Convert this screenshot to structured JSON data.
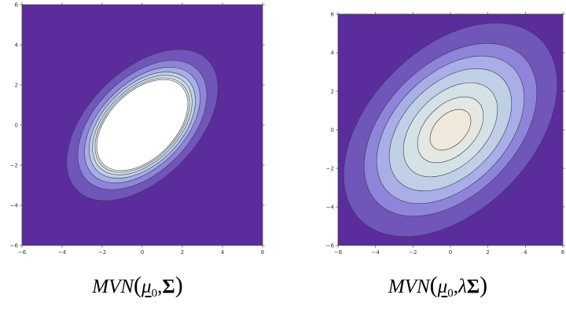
{
  "colors": {
    "background": "#5b2c9b",
    "levels": [
      "#7056b8",
      "#8e85da",
      "#a9aee6",
      "#bfd0e6",
      "#d4e2e6",
      "#e5e7e2",
      "#f1e8dc"
    ],
    "peak_fill": "#ffffff",
    "contour_line": "#3a3a55",
    "frame": "#444444"
  },
  "chart_data": [
    {
      "type": "contour",
      "title": "",
      "caption": {
        "func": "MVN",
        "mu": "μ",
        "sub": "0",
        "comma": ",",
        "lambda": "",
        "sigma": "Σ"
      },
      "xlabel": "",
      "ylabel": "",
      "xlim": [
        -6,
        6
      ],
      "ylim": [
        -6,
        6
      ],
      "xticks": [
        "−6",
        "−4",
        "−2",
        "0",
        "2",
        "4",
        "6"
      ],
      "yticks": [
        "−6",
        "−4",
        "−2",
        "0",
        "2",
        "4",
        "6"
      ],
      "grid": false,
      "center": [
        0,
        0
      ],
      "tilt_deg": 45,
      "levels": [
        {
          "semi_major": 4.6,
          "semi_minor": 2.7
        },
        {
          "semi_major": 3.9,
          "semi_minor": 2.35
        },
        {
          "semi_major": 3.5,
          "semi_minor": 2.1
        },
        {
          "semi_major": 3.2,
          "semi_minor": 1.95
        },
        {
          "semi_major": 3.0,
          "semi_minor": 1.82
        },
        {
          "semi_major": 2.85,
          "semi_minor": 1.73
        },
        {
          "semi_major": 2.75,
          "semi_minor": 1.66
        }
      ],
      "peak_white": true
    },
    {
      "type": "contour",
      "title": "",
      "caption": {
        "func": "MVN",
        "mu": "μ",
        "sub": "0",
        "comma": ",",
        "lambda": "λ",
        "sigma": "Σ"
      },
      "xlabel": "",
      "ylabel": "",
      "xlim": [
        -6,
        6
      ],
      "ylim": [
        -6,
        6
      ],
      "xticks": [
        "−6",
        "−4",
        "−2",
        "0",
        "2",
        "4",
        "6"
      ],
      "yticks": [
        "−6",
        "−4",
        "−2",
        "0",
        "2",
        "4",
        "6"
      ],
      "grid": false,
      "center": [
        0,
        0
      ],
      "tilt_deg": 45,
      "levels": [
        {
          "semi_major": 6.8,
          "semi_minor": 4.2
        },
        {
          "semi_major": 5.5,
          "semi_minor": 3.4
        },
        {
          "semi_major": 4.7,
          "semi_minor": 2.9
        },
        {
          "semi_major": 3.9,
          "semi_minor": 2.4
        },
        {
          "semi_major": 3.0,
          "semi_minor": 1.85
        },
        {
          "semi_major": 2.1,
          "semi_minor": 1.3
        },
        {
          "semi_major": 1.3,
          "semi_minor": 0.8
        }
      ],
      "peak_white": false
    }
  ]
}
